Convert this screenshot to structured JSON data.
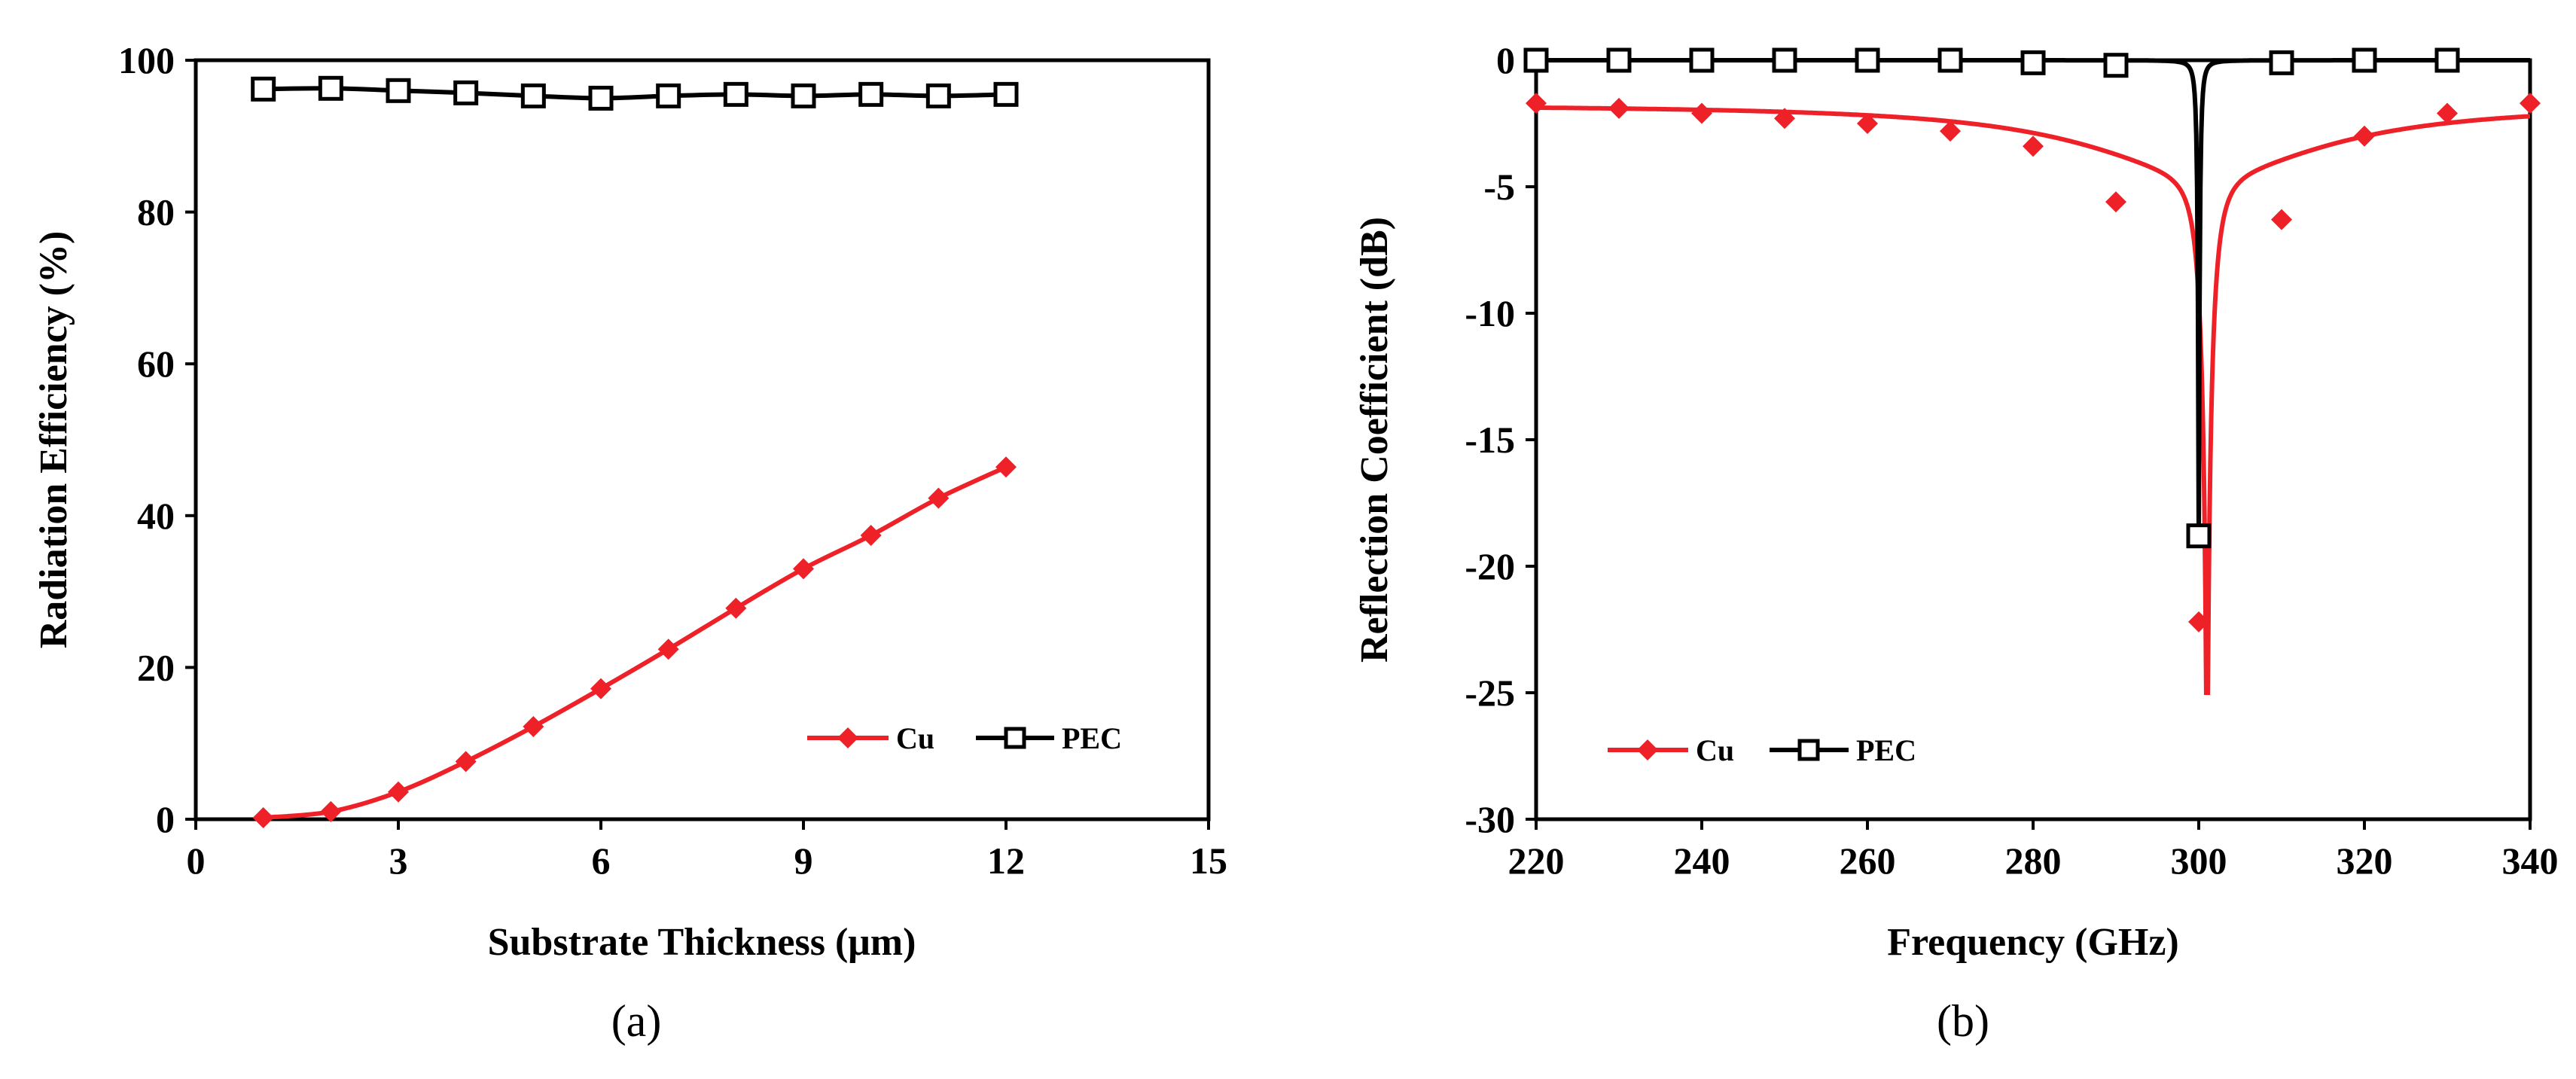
{
  "colors": {
    "cu": "#ee2128",
    "pec": "#000000"
  },
  "chart_data": [
    {
      "id": "a",
      "type": "line",
      "caption": "(a)",
      "xlabel": "Substrate Thickness (μm)",
      "ylabel": "Radiation Efficiency (%)",
      "xlim": [
        0,
        15
      ],
      "ylim": [
        0,
        100
      ],
      "xticks": [
        0,
        3,
        6,
        9,
        12,
        15
      ],
      "yticks": [
        0,
        20,
        40,
        60,
        80,
        100
      ],
      "xtick_labels": [
        "0",
        "3",
        "6",
        "9",
        "12",
        "15"
      ],
      "ytick_labels": [
        "0",
        "20",
        "40",
        "60",
        "80",
        "100"
      ],
      "legend": {
        "placement": "bottom-right",
        "entries": [
          "Cu",
          "PEC"
        ]
      },
      "series": [
        {
          "name": "Cu",
          "marker": "diamond",
          "x": [
            1,
            2,
            3,
            4,
            5,
            6,
            7,
            8,
            9,
            10,
            11,
            12
          ],
          "y": [
            0.2,
            1.0,
            3.6,
            7.6,
            12.2,
            17.2,
            22.4,
            27.8,
            33.0,
            37.4,
            42.3,
            46.4
          ]
        },
        {
          "name": "PEC",
          "marker": "square",
          "x": [
            1,
            2,
            3,
            4,
            5,
            6,
            7,
            8,
            9,
            10,
            11,
            12
          ],
          "y": [
            96.2,
            96.3,
            96.0,
            95.7,
            95.3,
            95.0,
            95.3,
            95.5,
            95.3,
            95.5,
            95.3,
            95.5
          ]
        }
      ]
    },
    {
      "id": "b",
      "type": "line",
      "caption": "(b)",
      "xlabel": "Frequency (GHz)",
      "ylabel": "Reflection Coefficient (dB)",
      "xlim": [
        220,
        340
      ],
      "ylim": [
        -30,
        0
      ],
      "xticks": [
        220,
        240,
        260,
        280,
        300,
        320,
        340
      ],
      "yticks": [
        0,
        -5,
        -10,
        -15,
        -20,
        -25,
        -30
      ],
      "xtick_labels": [
        "220",
        "240",
        "260",
        "280",
        "300",
        "320",
        "340"
      ],
      "ytick_labels": [
        "0",
        "-5",
        "-10",
        "-15",
        "-20",
        "-25",
        "-30"
      ],
      "legend": {
        "placement": "bottom-left",
        "entries": [
          "Cu",
          "PEC"
        ]
      },
      "series": [
        {
          "name": "Cu",
          "marker": "diamond",
          "resonance": {
            "f0": 301,
            "min_db": -25,
            "baseline_db": -0.85,
            "gamma": 1.5,
            "sat_db": 0.4
          },
          "markers_x": [
            220,
            230,
            240,
            250,
            260,
            270,
            280,
            290,
            300,
            310,
            320,
            330,
            340
          ],
          "markers_y": [
            -1.7,
            -1.9,
            -2.1,
            -2.3,
            -2.5,
            -2.8,
            -3.4,
            -5.6,
            -22.2,
            -6.3,
            -3.0,
            -2.1,
            -1.7
          ]
        },
        {
          "name": "PEC",
          "marker": "square",
          "resonance": {
            "f0": 300,
            "min_db": -19,
            "baseline_db": 0,
            "gamma": 0.3,
            "sat_db": 0.01
          },
          "markers_x": [
            220,
            230,
            240,
            250,
            260,
            270,
            280,
            290,
            300,
            310,
            320,
            330
          ],
          "markers_y": [
            0,
            0,
            0,
            0,
            0,
            0,
            -0.1,
            -0.2,
            -18.8,
            -0.1,
            0,
            0
          ]
        }
      ]
    }
  ]
}
